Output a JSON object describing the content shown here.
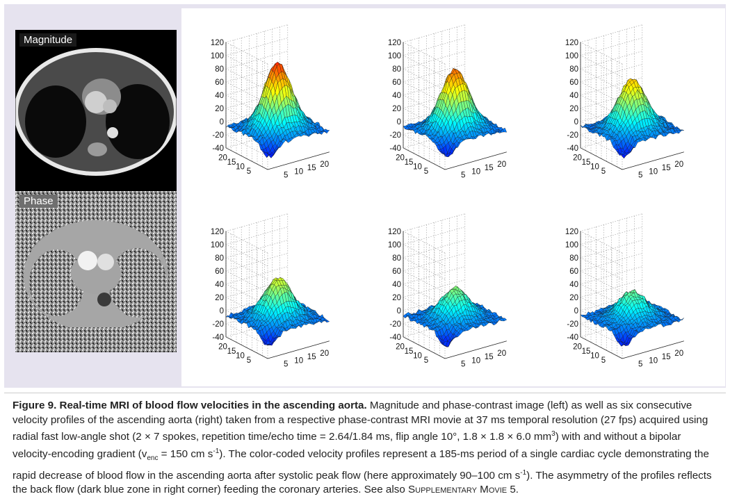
{
  "panels": {
    "magnitude_label": "Magnitude",
    "phase_label": "Phase"
  },
  "chart_data": [
    {
      "type": "surface",
      "z_ticks": [
        "120",
        "100",
        "80",
        "60",
        "40",
        "20",
        "0",
        "-20",
        "-40"
      ],
      "x_ticks": [
        "5",
        "10",
        "15",
        "20"
      ],
      "y_ticks": [
        "5",
        "10",
        "15",
        "20"
      ],
      "zlim": [
        -40,
        120
      ],
      "peak": 100,
      "palette": "jet"
    },
    {
      "type": "surface",
      "z_ticks": [
        "120",
        "100",
        "80",
        "60",
        "40",
        "20",
        "0",
        "-20",
        "-40"
      ],
      "x_ticks": [
        "5",
        "10",
        "15",
        "20"
      ],
      "y_ticks": [
        "5",
        "10",
        "15",
        "20"
      ],
      "zlim": [
        -40,
        120
      ],
      "peak": 90,
      "palette": "jet"
    },
    {
      "type": "surface",
      "z_ticks": [
        "120",
        "100",
        "80",
        "60",
        "40",
        "20",
        "0",
        "-20",
        "-40"
      ],
      "x_ticks": [
        "5",
        "10",
        "15",
        "20"
      ],
      "y_ticks": [
        "5",
        "10",
        "15",
        "20"
      ],
      "zlim": [
        -40,
        120
      ],
      "peak": 75,
      "palette": "jet"
    },
    {
      "type": "surface",
      "z_ticks": [
        "120",
        "100",
        "80",
        "60",
        "40",
        "20",
        "0",
        "-20",
        "-40"
      ],
      "x_ticks": [
        "5",
        "10",
        "15",
        "20"
      ],
      "y_ticks": [
        "5",
        "10",
        "15",
        "20"
      ],
      "zlim": [
        -40,
        120
      ],
      "peak": 60,
      "palette": "jet"
    },
    {
      "type": "surface",
      "z_ticks": [
        "120",
        "100",
        "80",
        "60",
        "40",
        "20",
        "0",
        "-20",
        "-40"
      ],
      "x_ticks": [
        "5",
        "10",
        "15",
        "20"
      ],
      "y_ticks": [
        "5",
        "10",
        "15",
        "20"
      ],
      "zlim": [
        -40,
        120
      ],
      "peak": 45,
      "palette": "jet"
    },
    {
      "type": "surface",
      "z_ticks": [
        "120",
        "100",
        "80",
        "60",
        "40",
        "20",
        "0",
        "-20",
        "-40"
      ],
      "x_ticks": [
        "5",
        "10",
        "15",
        "20"
      ],
      "y_ticks": [
        "5",
        "10",
        "15",
        "20"
      ],
      "zlim": [
        -40,
        120
      ],
      "peak": 40,
      "palette": "jet"
    }
  ],
  "caption": {
    "title": "Figure 9. Real-time MRI of blood flow velocities in the ascending aorta.",
    "text_1": " Magnitude and phase-contrast image (left) as well as six consecutive velocity profiles of the ascending aorta (right) taken from a respective phase-contrast MRI movie at 37 ms temporal resolution (27 fps) acquired using radial fast low-angle shot (2 × 7 spokes, repetition time/echo time = 2.64/1.84 ms, flip angle 10°, 1.8 × 1.8 × 6.0 mm",
    "sup_1": "3",
    "text_2": ") with and without a bipolar velocity-encoding gradient (v",
    "sub_1": "enc",
    "text_3": " = 150 cm s",
    "sup_2": "-1",
    "text_4": "). The color-coded velocity profiles represent a 185-ms period of a single cardiac cycle demonstrating the rapid decrease of blood flow in the ascending aorta after systolic peak flow (here approximately 90–100 cm s",
    "sup_3": "-1",
    "text_5": "). The asymmetry of the profiles reflects the back flow (dark blue zone in right corner) feeding the coronary arteries. See also ",
    "movie_ref": "Supplementary Movie 5",
    "end": "."
  }
}
